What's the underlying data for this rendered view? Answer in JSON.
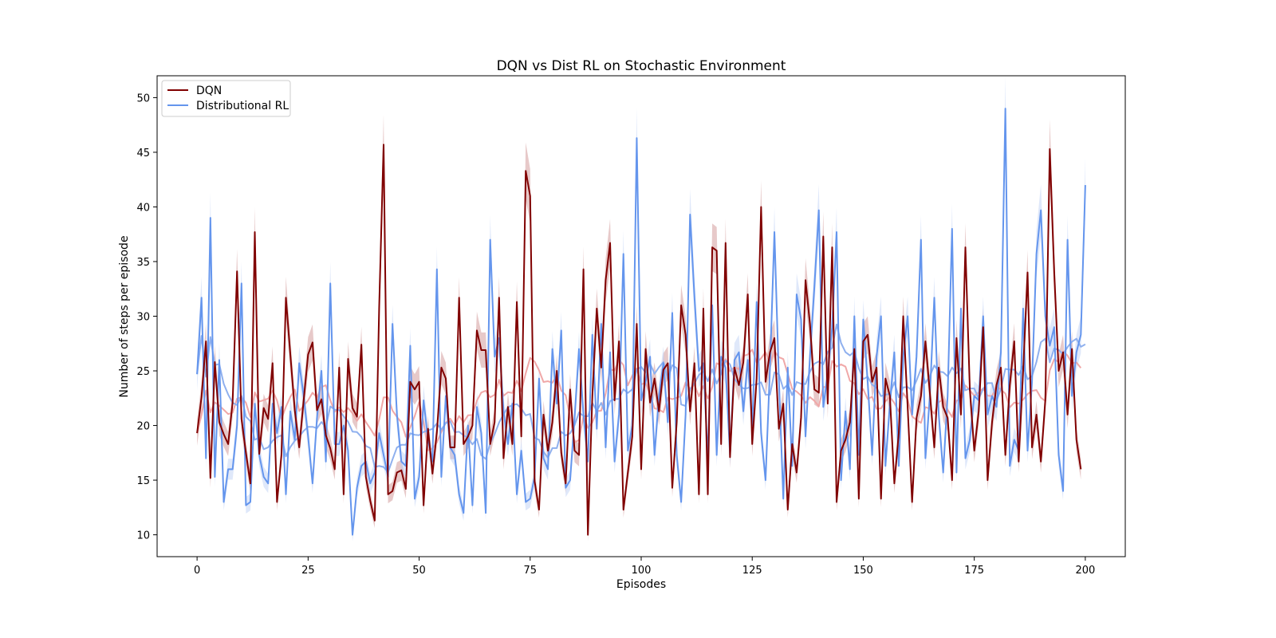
{
  "chart_data": {
    "type": "line",
    "title": "DQN vs Dist RL on Stochastic Environment",
    "xlabel": "Episodes",
    "ylabel": "Number of steps per episode",
    "xlim": [
      -9,
      209
    ],
    "ylim": [
      8,
      52
    ],
    "xticks": [
      0,
      25,
      50,
      75,
      100,
      125,
      150,
      175,
      200
    ],
    "yticks": [
      10,
      15,
      20,
      25,
      30,
      35,
      40,
      45,
      50
    ],
    "legend_position": "top-left",
    "grid": false,
    "shaded_band_around_series": true,
    "moving_average_overlay": true,
    "series": [
      {
        "name": "DQN",
        "color": "#800000",
        "band_color": "#c98888",
        "avg_color": "#f0a8a8",
        "x_start": 0,
        "values": [
          19.3,
          22.6,
          27.7,
          15.2,
          25.8,
          20.3,
          19.2,
          18.3,
          22.1,
          34.1,
          20.6,
          17.5,
          14.7,
          37.7,
          17.4,
          21.6,
          20.6,
          25.7,
          13,
          17.3,
          31.7,
          26.5,
          21.4,
          18,
          22.3,
          26.5,
          27.6,
          21.4,
          22.4,
          19.1,
          17.9,
          16,
          25.3,
          13.7,
          26.1,
          21.6,
          20.8,
          27.4,
          15.3,
          13.1,
          11.3,
          30.8,
          45.7,
          13.7,
          14,
          15.7,
          15.9,
          14.2,
          24,
          23.3,
          24,
          12.7,
          19.7,
          15.6,
          19.4,
          25.3,
          24.3,
          18,
          18,
          31.7,
          18.3,
          19,
          20,
          28.7,
          26.9,
          26.9,
          18.3,
          20.3,
          31.7,
          17,
          21.7,
          18.3,
          31.3,
          19,
          43.3,
          41,
          14.9,
          12.3,
          21,
          17.7,
          20.3,
          25,
          17.5,
          14.7,
          23.3,
          17.7,
          17.3,
          34.3,
          10,
          22.7,
          30.7,
          25.3,
          33.3,
          36.7,
          22.3,
          27.7,
          12.3,
          15.7,
          19,
          29.3,
          16,
          27,
          22.1,
          24.3,
          21.3,
          25.1,
          25.7,
          14.3,
          20.3,
          31,
          28.3,
          21.3,
          25.7,
          13.7,
          30.7,
          13.7,
          36.3,
          36,
          18.3,
          36.7,
          17.1,
          25.3,
          23.7,
          25.8,
          32,
          18.3,
          24.3,
          40,
          24,
          26.7,
          28,
          19.7,
          22,
          12.3,
          18.3,
          15.7,
          20.7,
          33.3,
          29.3,
          23.3,
          23,
          37.3,
          22,
          36.3,
          13,
          17.7,
          18.7,
          20.3,
          27,
          13.3,
          27.7,
          28.3,
          24,
          25.3,
          13.3,
          24.3,
          22.7,
          14.7,
          19.3,
          30,
          21.7,
          13,
          20.7,
          22.7,
          27.7,
          23,
          18,
          25.3,
          21.7,
          20.7,
          15,
          28,
          21,
          36.3,
          23.3,
          17.7,
          21.3,
          29,
          15,
          20.3,
          23.7,
          25.3,
          17.3,
          23.7,
          27.7,
          16.7,
          25,
          34,
          18,
          21,
          16.7,
          22.3,
          45.3,
          34,
          25,
          26.7,
          21,
          27,
          18.7,
          16
        ]
      },
      {
        "name": "Distributional RL",
        "color": "#6495ed",
        "band_color": "#b9cdf4",
        "avg_color": "#8fb0ee",
        "x_start": 0,
        "values": [
          24.7,
          31.7,
          17,
          39,
          15.3,
          26,
          13,
          16,
          16,
          20,
          33,
          12.7,
          13,
          22,
          17.3,
          15.3,
          14.7,
          22,
          19.3,
          21.7,
          13.7,
          21.3,
          18.7,
          25.7,
          22.7,
          19,
          14.7,
          20.7,
          25,
          16.7,
          33,
          18.3,
          18.3,
          20,
          17.7,
          10,
          14.3,
          16.3,
          16.7,
          14.7,
          15.7,
          19.3,
          17.3,
          15.3,
          29.3,
          21,
          16.7,
          16.3,
          27.3,
          13.3,
          15.3,
          22.3,
          18.7,
          16.7,
          34.3,
          15.3,
          22.7,
          18,
          17.3,
          13.7,
          12,
          20,
          12.7,
          21.7,
          19.3,
          12,
          37,
          26.3,
          28,
          21.3,
          18.3,
          22,
          13.7,
          17.7,
          13,
          13.3,
          15.3,
          24.3,
          17,
          16,
          27,
          22,
          28.7,
          14.3,
          15,
          20.7,
          27,
          21,
          16.7,
          28.3,
          19.7,
          29.3,
          18,
          26.7,
          16.7,
          21,
          35.7,
          17.7,
          20,
          46.3,
          22.3,
          24,
          26.3,
          17.3,
          22.7,
          25.7,
          20.3,
          30.3,
          17.3,
          13,
          21,
          39.3,
          31.7,
          25,
          25.7,
          17,
          31,
          17.3,
          26.3,
          25.3,
          17.3,
          26,
          26.7,
          21.3,
          26,
          20,
          31.3,
          19.3,
          15,
          25.3,
          37.7,
          24.3,
          13.3,
          25.3,
          16.3,
          32,
          29.7,
          19,
          26.3,
          32.7,
          39.7,
          21.7,
          24.7,
          29,
          37.7,
          15,
          21.3,
          16,
          30,
          17.3,
          29.7,
          24,
          17.3,
          26.3,
          30,
          16.3,
          22,
          26.7,
          16.3,
          26.3,
          30,
          21,
          26.3,
          37,
          17,
          22.7,
          31.7,
          21,
          15.7,
          22.7,
          38,
          15.7,
          30.7,
          17,
          18.7,
          22.7,
          22.3,
          30,
          21,
          22.7,
          21.7,
          26.7,
          49,
          16.3,
          18.7,
          17.7,
          30.7,
          17.7,
          24,
          35.7,
          39.7,
          30,
          27.3,
          29,
          17.3,
          14,
          37,
          22.7,
          26.7,
          28.3,
          42
        ]
      }
    ]
  }
}
